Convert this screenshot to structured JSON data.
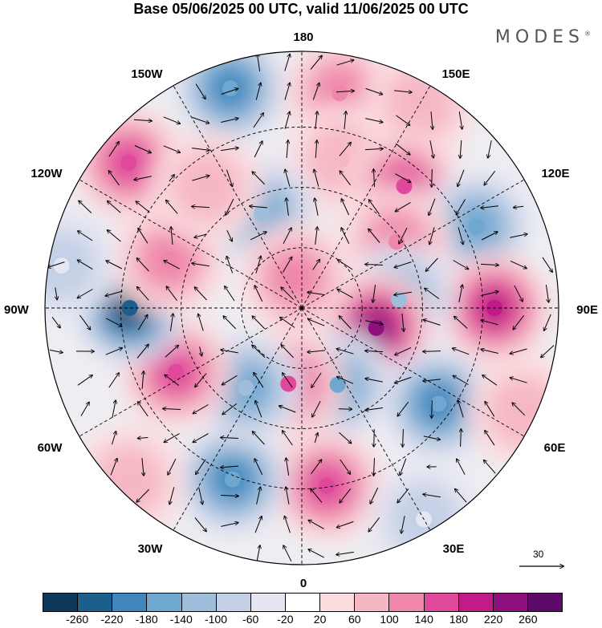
{
  "title": "Base 05/06/2025 00 UTC, valid 11/06/2025 00 UTC",
  "brand": "MODES",
  "brand_mark": "®",
  "longitude_labels": {
    "top": "180",
    "bottom": "0",
    "left": "90W",
    "right": "90E",
    "upper_left_outer": "150W",
    "upper_left_inner": "120W",
    "upper_right_outer": "150E",
    "upper_right_inner": "120E",
    "lower_left_inner": "60W",
    "lower_left_outer": "30W",
    "lower_right_inner": "60E",
    "lower_right_outer": "30E"
  },
  "vector_scale": "30",
  "colorbar": {
    "colors": [
      "#0d3a5c",
      "#1c5f8d",
      "#3e86bd",
      "#6ea7d0",
      "#9fbedc",
      "#c4d0e6",
      "#e6e6f2",
      "#ffffff",
      "#fbdde0",
      "#f6b7c4",
      "#ef86ab",
      "#e0489b",
      "#c01b86",
      "#8f0f7e",
      "#5e0a6b"
    ],
    "ticks": [
      "-260",
      "-220",
      "-180",
      "-140",
      "-100",
      "-60",
      "-20",
      "20",
      "60",
      "100",
      "140",
      "180",
      "220",
      "260"
    ]
  },
  "anomaly_cells": [
    {
      "lon": 170,
      "r": 0.85,
      "value": 120
    },
    {
      "lon": 165,
      "r": 0.6,
      "value": 80
    },
    {
      "lon": 150,
      "r": 0.92,
      "value": 60
    },
    {
      "lon": 140,
      "r": 0.62,
      "value": 140
    },
    {
      "lon": 115,
      "r": 0.75,
      "value": -160
    },
    {
      "lon": 125,
      "r": 0.45,
      "value": 100
    },
    {
      "lon": 90,
      "r": 0.75,
      "value": 200
    },
    {
      "lon": 95,
      "r": 0.38,
      "value": -140
    },
    {
      "lon": 75,
      "r": 0.3,
      "value": 220
    },
    {
      "lon": 55,
      "r": 0.65,
      "value": -180
    },
    {
      "lon": 25,
      "r": 0.33,
      "value": -160
    },
    {
      "lon": 8,
      "r": 0.7,
      "value": 140
    },
    {
      "lon": -10,
      "r": 0.3,
      "value": 160
    },
    {
      "lon": -22,
      "r": 0.72,
      "value": -180
    },
    {
      "lon": -35,
      "r": 0.38,
      "value": -140
    },
    {
      "lon": -63,
      "r": 0.55,
      "value": 160
    },
    {
      "lon": -90,
      "r": 0.67,
      "value": -260
    },
    {
      "lon": -110,
      "r": 0.55,
      "value": 120
    },
    {
      "lon": -130,
      "r": 0.88,
      "value": 140
    },
    {
      "lon": -157,
      "r": 0.4,
      "value": -140
    },
    {
      "lon": -168,
      "r": 0.12,
      "value": 100
    },
    {
      "lon": -162,
      "r": 0.9,
      "value": -180
    },
    {
      "lon": -142,
      "r": 0.6,
      "value": 80
    },
    {
      "lon": 30,
      "r": 0.95,
      "value": -60
    },
    {
      "lon": -45,
      "r": 0.95,
      "value": 60
    },
    {
      "lon": 65,
      "r": 0.95,
      "value": 60
    },
    {
      "lon": -100,
      "r": 0.95,
      "value": -60
    }
  ]
}
